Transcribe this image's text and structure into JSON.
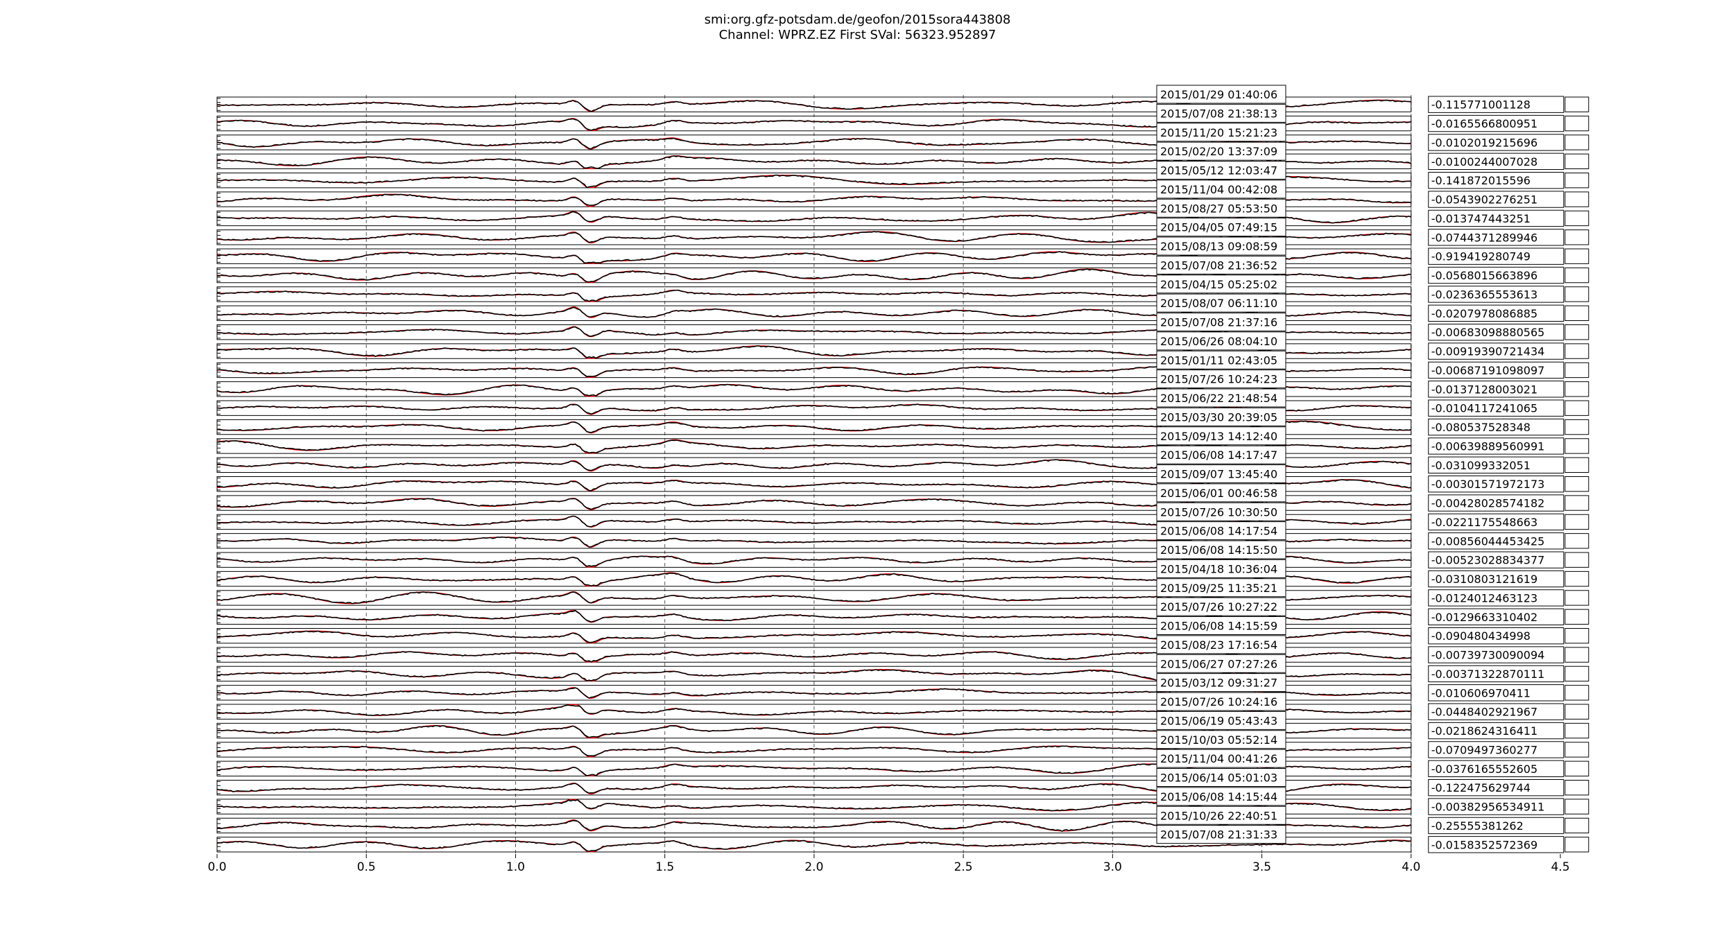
{
  "chart_data": {
    "type": "line",
    "title": "smi:org.gfz-potsdam.de/geofon/2015sora443808",
    "subtitle": "Channel: WPRZ.EZ First SVal: 56323.952897",
    "xlim": [
      0,
      4.5
    ],
    "x_ticks": [
      "0.0",
      "0.5",
      "1.0",
      "1.5",
      "2.0",
      "2.5",
      "3.0",
      "3.5",
      "4.0",
      "4.5"
    ],
    "grid": "vertical dashed",
    "series_colors": {
      "reference": "#ff0000",
      "trace": "#000000"
    },
    "traces": [
      {
        "date": "2015/01/29 01:40:06",
        "value": "-0.115771001128"
      },
      {
        "date": "2015/07/08 21:38:13",
        "value": "-0.0165566800951"
      },
      {
        "date": "2015/11/20 15:21:23",
        "value": "-0.0102019215696"
      },
      {
        "date": "2015/02/20 13:37:09",
        "value": "-0.0100244007028"
      },
      {
        "date": "2015/05/12 12:03:47",
        "value": "-0.141872015596"
      },
      {
        "date": "2015/11/04 00:42:08",
        "value": "-0.0543902276251"
      },
      {
        "date": "2015/08/27 05:53:50",
        "value": "-0.013747443251"
      },
      {
        "date": "2015/04/05 07:49:15",
        "value": "-0.0744371289946"
      },
      {
        "date": "2015/08/13 09:08:59",
        "value": "-0.919419280749"
      },
      {
        "date": "2015/07/08 21:36:52",
        "value": "-0.0568015663896"
      },
      {
        "date": "2015/04/15 05:25:02",
        "value": "-0.0236365553613"
      },
      {
        "date": "2015/08/07 06:11:10",
        "value": "-0.0207978086885"
      },
      {
        "date": "2015/07/08 21:37:16",
        "value": "-0.00683098880565"
      },
      {
        "date": "2015/06/26 08:04:10",
        "value": "-0.00919390721434"
      },
      {
        "date": "2015/01/11 02:43:05",
        "value": "-0.00687191098097"
      },
      {
        "date": "2015/07/26 10:24:23",
        "value": "-0.0137128003021"
      },
      {
        "date": "2015/06/22 21:48:54",
        "value": "-0.0104117241065"
      },
      {
        "date": "2015/03/30 20:39:05",
        "value": "-0.080537528348"
      },
      {
        "date": "2015/09/13 14:12:40",
        "value": "-0.00639889560991"
      },
      {
        "date": "2015/06/08 14:17:47",
        "value": "-0.031099332051"
      },
      {
        "date": "2015/09/07 13:45:40",
        "value": "-0.00301571972173"
      },
      {
        "date": "2015/06/01 00:46:58",
        "value": "-0.00428028574182"
      },
      {
        "date": "2015/07/26 10:30:50",
        "value": "-0.0221175548663"
      },
      {
        "date": "2015/06/08 14:17:54",
        "value": "-0.00856044453425"
      },
      {
        "date": "2015/06/08 14:15:50",
        "value": "-0.00523028834377"
      },
      {
        "date": "2015/04/18 10:36:04",
        "value": "-0.0310803121619"
      },
      {
        "date": "2015/09/25 11:35:21",
        "value": "-0.0124012463123"
      },
      {
        "date": "2015/07/26 10:27:22",
        "value": "-0.0129663310402"
      },
      {
        "date": "2015/06/08 14:15:59",
        "value": "-0.090480434998"
      },
      {
        "date": "2015/08/23 17:16:54",
        "value": "-0.00739730090094"
      },
      {
        "date": "2015/06/27 07:27:26",
        "value": "-0.00371322870111"
      },
      {
        "date": "2015/03/12 09:31:27",
        "value": "-0.010606970411"
      },
      {
        "date": "2015/07/26 10:24:16",
        "value": "-0.0448402921967"
      },
      {
        "date": "2015/06/19 05:43:43",
        "value": "-0.0218624316411"
      },
      {
        "date": "2015/10/03 05:52:14",
        "value": "-0.0709497360277"
      },
      {
        "date": "2015/11/04 00:41:26",
        "value": "-0.0376165552605"
      },
      {
        "date": "2015/06/14 05:01:03",
        "value": "-0.122475629744"
      },
      {
        "date": "2015/06/08 14:15:44",
        "value": "-0.00382956534911"
      },
      {
        "date": "2015/10/26 22:40:51",
        "value": "-0.25555381262"
      },
      {
        "date": "2015/07/08 21:31:33",
        "value": "-0.0158352572369"
      }
    ]
  }
}
